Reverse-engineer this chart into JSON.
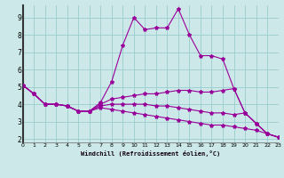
{
  "xlabel": "Windchill (Refroidissement éolien,°C)",
  "background_color": "#cce8e8",
  "line_color": "#990099",
  "grid_color": "#99cccc",
  "xlim": [
    0,
    23
  ],
  "ylim": [
    1.8,
    9.7
  ],
  "xticks": [
    0,
    1,
    2,
    3,
    4,
    5,
    6,
    7,
    8,
    9,
    10,
    11,
    12,
    13,
    14,
    15,
    16,
    17,
    18,
    19,
    20,
    21,
    22,
    23
  ],
  "yticks": [
    2,
    3,
    4,
    5,
    6,
    7,
    8,
    9
  ],
  "lines": [
    [
      5.1,
      4.6,
      4.0,
      4.0,
      3.9,
      3.6,
      3.6,
      4.1,
      5.3,
      7.4,
      9.0,
      8.3,
      8.4,
      8.4,
      9.5,
      8.0,
      6.8,
      6.8,
      6.6,
      4.9,
      3.5,
      2.9,
      2.3,
      2.1
    ],
    [
      5.1,
      4.6,
      4.0,
      4.0,
      3.9,
      3.6,
      3.6,
      4.0,
      4.3,
      4.4,
      4.5,
      4.6,
      4.6,
      4.7,
      4.8,
      4.8,
      4.7,
      4.7,
      4.8,
      4.9,
      3.5,
      2.9,
      2.3,
      2.1
    ],
    [
      5.1,
      4.6,
      4.0,
      4.0,
      3.9,
      3.6,
      3.6,
      3.9,
      4.0,
      4.0,
      4.0,
      4.0,
      3.9,
      3.9,
      3.8,
      3.7,
      3.6,
      3.5,
      3.5,
      3.4,
      3.5,
      2.9,
      2.3,
      2.1
    ],
    [
      5.1,
      4.6,
      4.0,
      4.0,
      3.9,
      3.6,
      3.6,
      3.8,
      3.7,
      3.6,
      3.5,
      3.4,
      3.3,
      3.2,
      3.1,
      3.0,
      2.9,
      2.8,
      2.8,
      2.7,
      2.6,
      2.5,
      2.3,
      2.1
    ]
  ]
}
